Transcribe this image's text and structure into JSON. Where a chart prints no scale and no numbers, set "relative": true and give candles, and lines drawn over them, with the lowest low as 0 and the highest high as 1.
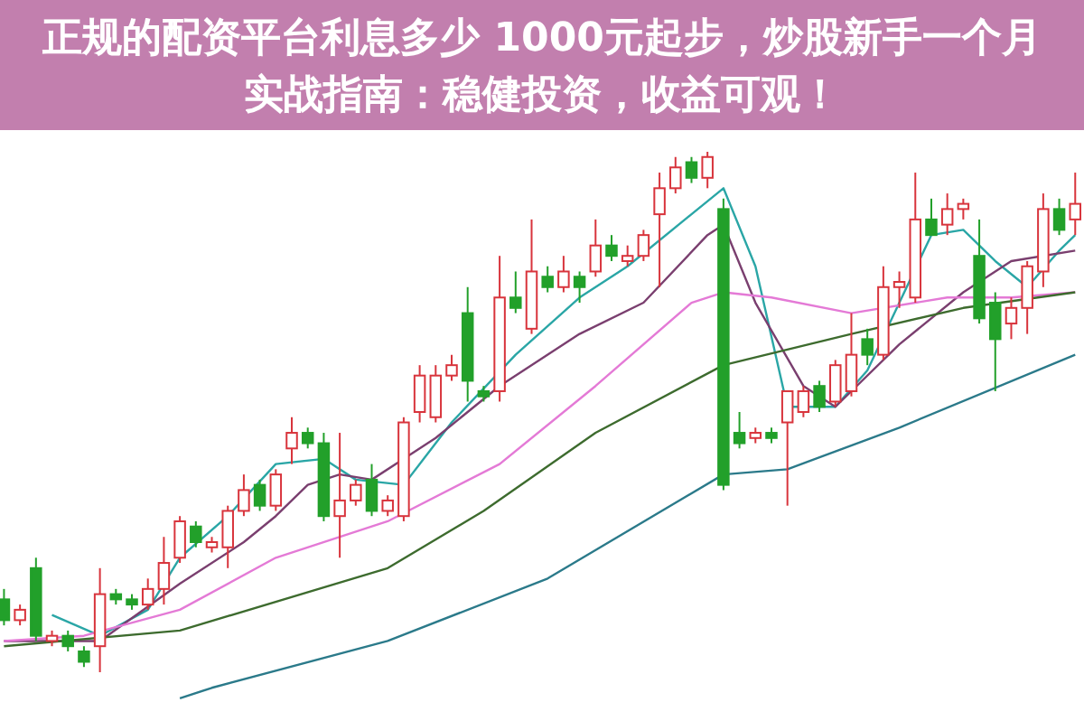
{
  "chart_data": {
    "type": "candlestick",
    "relative": true,
    "title": "正规的配资平台利息多少 1000元起步，炒股新手一个月实战指南：稳健投资，收益可观！",
    "categories": [
      null,
      null,
      null,
      null,
      null,
      null,
      null,
      null,
      null,
      null,
      null,
      null,
      null,
      null,
      null,
      null,
      null,
      null,
      null,
      null,
      null,
      null,
      null,
      null,
      null,
      null,
      null,
      null,
      null,
      null,
      null,
      null,
      null,
      null,
      null,
      null,
      null,
      null,
      null,
      null,
      null,
      null,
      null,
      null,
      null,
      null,
      null,
      null,
      null,
      null,
      null,
      null,
      null,
      null,
      null,
      null,
      null,
      null,
      null,
      null,
      null,
      null,
      null,
      null,
      null,
      null,
      null,
      null
    ],
    "ohlc": [
      [
        0.14,
        0.16,
        0.09,
        0.1
      ],
      [
        0.1,
        0.13,
        0.09,
        0.12
      ],
      [
        0.2,
        0.22,
        0.06,
        0.07
      ],
      [
        0.06,
        0.08,
        0.05,
        0.07
      ],
      [
        0.07,
        0.08,
        0.04,
        0.05
      ],
      [
        0.04,
        0.05,
        0.01,
        0.02
      ],
      [
        0.05,
        0.2,
        0,
        0.15
      ],
      [
        0.15,
        0.16,
        0.13,
        0.14
      ],
      [
        0.14,
        0.15,
        0.12,
        0.13
      ],
      [
        0.13,
        0.18,
        0.12,
        0.16
      ],
      [
        0.16,
        0.26,
        0.13,
        0.21
      ],
      [
        0.22,
        0.3,
        0.21,
        0.29
      ],
      [
        0.28,
        0.29,
        0.24,
        0.25
      ],
      [
        0.24,
        0.26,
        0.23,
        0.25
      ],
      [
        0.24,
        0.32,
        0.2,
        0.31
      ],
      [
        0.31,
        0.38,
        0.3,
        0.35
      ],
      [
        0.36,
        0.37,
        0.31,
        0.32
      ],
      [
        0.32,
        0.39,
        0.31,
        0.38
      ],
      [
        0.43,
        0.49,
        0.4,
        0.46
      ],
      [
        0.46,
        0.47,
        0.43,
        0.44
      ],
      [
        0.44,
        0.46,
        0.29,
        0.3
      ],
      [
        0.3,
        0.46,
        0.22,
        0.33
      ],
      [
        0.33,
        0.37,
        0.32,
        0.36
      ],
      [
        0.37,
        0.4,
        0.3,
        0.31
      ],
      [
        0.31,
        0.34,
        0.3,
        0.33
      ],
      [
        0.3,
        0.49,
        0.29,
        0.48
      ],
      [
        0.5,
        0.59,
        0.48,
        0.57
      ],
      [
        0.49,
        0.59,
        0.48,
        0.57
      ],
      [
        0.57,
        0.61,
        0.56,
        0.59
      ],
      [
        0.69,
        0.74,
        0.52,
        0.56
      ],
      [
        0.54,
        0.55,
        0.52,
        0.53
      ],
      [
        0.54,
        0.8,
        0.52,
        0.72
      ],
      [
        0.72,
        0.77,
        0.69,
        0.7
      ],
      [
        0.66,
        0.87,
        0.65,
        0.77
      ],
      [
        0.76,
        0.78,
        0.73,
        0.74
      ],
      [
        0.74,
        0.8,
        0.73,
        0.77
      ],
      [
        0.76,
        0.77,
        0.71,
        0.74
      ],
      [
        0.77,
        0.87,
        0.76,
        0.82
      ],
      [
        0.82,
        0.84,
        0.79,
        0.8
      ],
      [
        0.79,
        0.82,
        0.78,
        0.8
      ],
      [
        0.8,
        0.85,
        0.79,
        0.84
      ],
      [
        0.88,
        0.96,
        0.74,
        0.93
      ],
      [
        0.93,
        0.99,
        0.92,
        0.97
      ],
      [
        0.98,
        0.99,
        0.94,
        0.95
      ],
      [
        0.95,
        1,
        0.93,
        0.99
      ],
      [
        0.89,
        0.91,
        0.35,
        0.36
      ],
      [
        0.46,
        0.5,
        0.43,
        0.44
      ],
      [
        0.45,
        0.47,
        0.44,
        0.46
      ],
      [
        0.46,
        0.47,
        0.44,
        0.45
      ],
      [
        0.48,
        0.54,
        0.32,
        0.54
      ],
      [
        0.5,
        0.55,
        0.49,
        0.54
      ],
      [
        0.55,
        0.56,
        0.5,
        0.51
      ],
      [
        0.52,
        0.6,
        0.51,
        0.59
      ],
      [
        0.54,
        0.69,
        0.53,
        0.61
      ],
      [
        0.64,
        0.66,
        0.59,
        0.61
      ],
      [
        0.61,
        0.78,
        0.6,
        0.74
      ],
      [
        0.74,
        0.77,
        0.7,
        0.75
      ],
      [
        0.72,
        0.96,
        0.71,
        0.87
      ],
      [
        0.87,
        0.91,
        0.84,
        0.84
      ],
      [
        0.86,
        0.92,
        0.84,
        0.89
      ],
      [
        0.89,
        0.91,
        0.87,
        0.9
      ],
      [
        0.8,
        0.87,
        0.67,
        0.68
      ],
      [
        0.71,
        0.73,
        0.54,
        0.64
      ],
      [
        0.67,
        0.72,
        0.64,
        0.7
      ],
      [
        0.7,
        0.79,
        0.65,
        0.78
      ],
      [
        0.77,
        0.92,
        0.74,
        0.89
      ],
      [
        0.89,
        0.91,
        0.84,
        0.85
      ],
      [
        0.87,
        0.96,
        0.84,
        0.9
      ]
    ],
    "series": [
      {
        "type": "line",
        "color": "#2aa6a6",
        "values": [
          null,
          null,
          null,
          0.11,
          null,
          null,
          0.07,
          null,
          null,
          0.12,
          null,
          0.22,
          null,
          null,
          0.3,
          null,
          null,
          0.4,
          null,
          null,
          0.41,
          null,
          0.37,
          null,
          null,
          0.36,
          null,
          null,
          0.48,
          null,
          null,
          null,
          0.61,
          null,
          null,
          null,
          0.72,
          null,
          null,
          0.78,
          null,
          null,
          null,
          0.88,
          null,
          0.93,
          null,
          0.78,
          null,
          0.51,
          null,
          null,
          0.51,
          null,
          0.58,
          null,
          0.71,
          null,
          0.84,
          null,
          0.85,
          null,
          0.79,
          null,
          0.74,
          null,
          0.81,
          0.84
        ]
      },
      {
        "type": "line",
        "color": "#7a3f6f",
        "values": [
          0.06,
          null,
          null,
          null,
          null,
          null,
          0.06,
          null,
          null,
          null,
          null,
          0.17,
          null,
          null,
          null,
          0.25,
          null,
          0.3,
          null,
          0.36,
          null,
          0.38,
          null,
          0.37,
          null,
          null,
          null,
          0.45,
          null,
          null,
          null,
          0.55,
          null,
          null,
          null,
          null,
          0.65,
          null,
          null,
          null,
          0.71,
          null,
          null,
          null,
          0.84,
          0.86,
          null,
          0.71,
          null,
          null,
          0.55,
          null,
          0.51,
          null,
          null,
          null,
          0.63,
          null,
          null,
          null,
          0.73,
          null,
          null,
          0.79,
          null,
          null,
          null,
          0.81
        ]
      },
      {
        "type": "line",
        "color": "#e47ad6",
        "values": [
          0.06,
          null,
          null,
          null,
          null,
          0.07,
          null,
          null,
          null,
          null,
          null,
          0.12,
          null,
          null,
          null,
          null,
          null,
          0.22,
          null,
          null,
          null,
          null,
          null,
          null,
          0.29,
          null,
          null,
          null,
          null,
          null,
          null,
          0.4,
          null,
          null,
          null,
          null,
          null,
          0.55,
          null,
          null,
          null,
          null,
          null,
          0.71,
          null,
          0.73,
          null,
          null,
          0.72,
          null,
          null,
          null,
          null,
          0.69,
          null,
          null,
          null,
          null,
          null,
          0.72,
          null,
          null,
          null,
          0.72,
          null,
          null,
          null,
          0.73
        ]
      },
      {
        "type": "line",
        "color": "#3d6b2e",
        "values": [
          0.05,
          null,
          null,
          null,
          null,
          null,
          null,
          null,
          null,
          null,
          null,
          0.08,
          null,
          null,
          null,
          null,
          null,
          null,
          null,
          null,
          null,
          null,
          null,
          null,
          0.2,
          null,
          null,
          null,
          null,
          null,
          0.31,
          null,
          null,
          null,
          null,
          null,
          null,
          0.46,
          null,
          null,
          null,
          null,
          null,
          null,
          null,
          0.59,
          null,
          null,
          null,
          null,
          null,
          null,
          null,
          0.65,
          null,
          null,
          null,
          null,
          null,
          null,
          0.7,
          null,
          null,
          null,
          null,
          null,
          null,
          0.73
        ]
      },
      {
        "type": "line",
        "color": "#2b7a8a",
        "values": [
          null,
          null,
          null,
          null,
          null,
          null,
          null,
          null,
          null,
          null,
          null,
          -0.05,
          null,
          -0.03,
          null,
          null,
          null,
          null,
          null,
          null,
          null,
          null,
          null,
          null,
          0.06,
          null,
          null,
          null,
          null,
          null,
          null,
          null,
          null,
          null,
          0.18,
          null,
          null,
          null,
          null,
          null,
          null,
          null,
          null,
          null,
          null,
          0.38,
          null,
          null,
          null,
          0.39,
          null,
          null,
          null,
          null,
          null,
          null,
          0.47,
          null,
          null,
          null,
          null,
          null,
          null,
          null,
          null,
          null,
          null,
          0.61
        ]
      }
    ]
  }
}
